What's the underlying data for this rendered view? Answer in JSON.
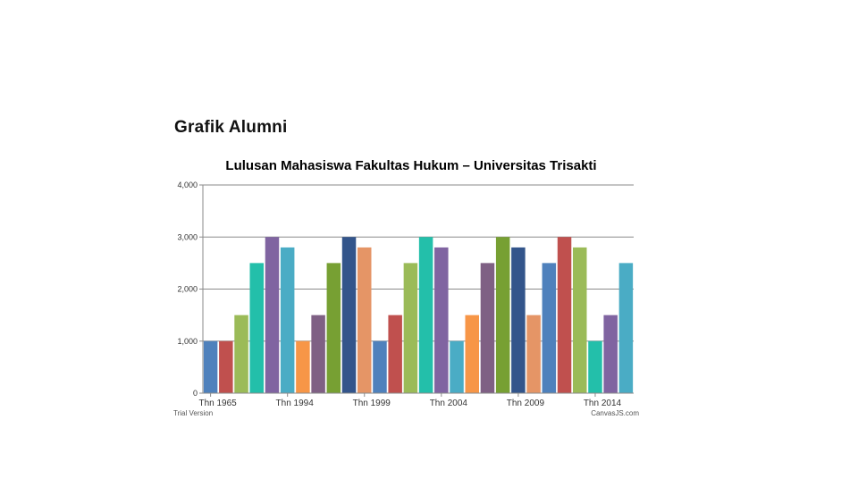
{
  "page": {
    "heading": "Grafik Alumni"
  },
  "footer": {
    "left": "Trial Version",
    "right": "CanvasJS.com"
  },
  "chart_data": {
    "type": "bar",
    "title": "Lulusan Mahasiswa Fakultas Hukum – Universitas Trisakti",
    "xlabel": "",
    "ylabel": "",
    "ylim": [
      0,
      4000
    ],
    "yticks": [
      0,
      1000,
      2000,
      3000,
      4000
    ],
    "ytick_labels": [
      "0",
      "1,000",
      "2,000",
      "3,000",
      "4,000"
    ],
    "grid": true,
    "legend": "none",
    "x_tick_labels": [
      {
        "label": "Thn 1965",
        "index": 0
      },
      {
        "label": "Thn 1994",
        "index": 5
      },
      {
        "label": "Thn 1999",
        "index": 10
      },
      {
        "label": "Thn 2004",
        "index": 15
      },
      {
        "label": "Thn 2009",
        "index": 20
      },
      {
        "label": "Thn 2014",
        "index": 25
      }
    ],
    "values": [
      1000,
      1000,
      1500,
      2500,
      3000,
      2800,
      1000,
      1500,
      2500,
      3000,
      2800,
      1000,
      1500,
      2500,
      3000,
      2800,
      1000,
      1500,
      2500,
      3000,
      2800,
      1500,
      2500,
      3000,
      2800,
      1000,
      1500,
      2500
    ],
    "colors": [
      "#4F81BC",
      "#C0504E",
      "#9BBB58",
      "#23BFAA",
      "#8064A1",
      "#4AACC5",
      "#F79647",
      "#7F6084",
      "#77A033",
      "#33558B",
      "#E59566",
      "#4F81BC",
      "#C0504E",
      "#9BBB58",
      "#23BFAA",
      "#8064A1",
      "#4AACC5",
      "#F79647",
      "#7F6084",
      "#77A033",
      "#33558B",
      "#E59566",
      "#4F81BC",
      "#C0504E",
      "#9BBB58",
      "#23BFAA",
      "#8064A1",
      "#4AACC5"
    ]
  }
}
